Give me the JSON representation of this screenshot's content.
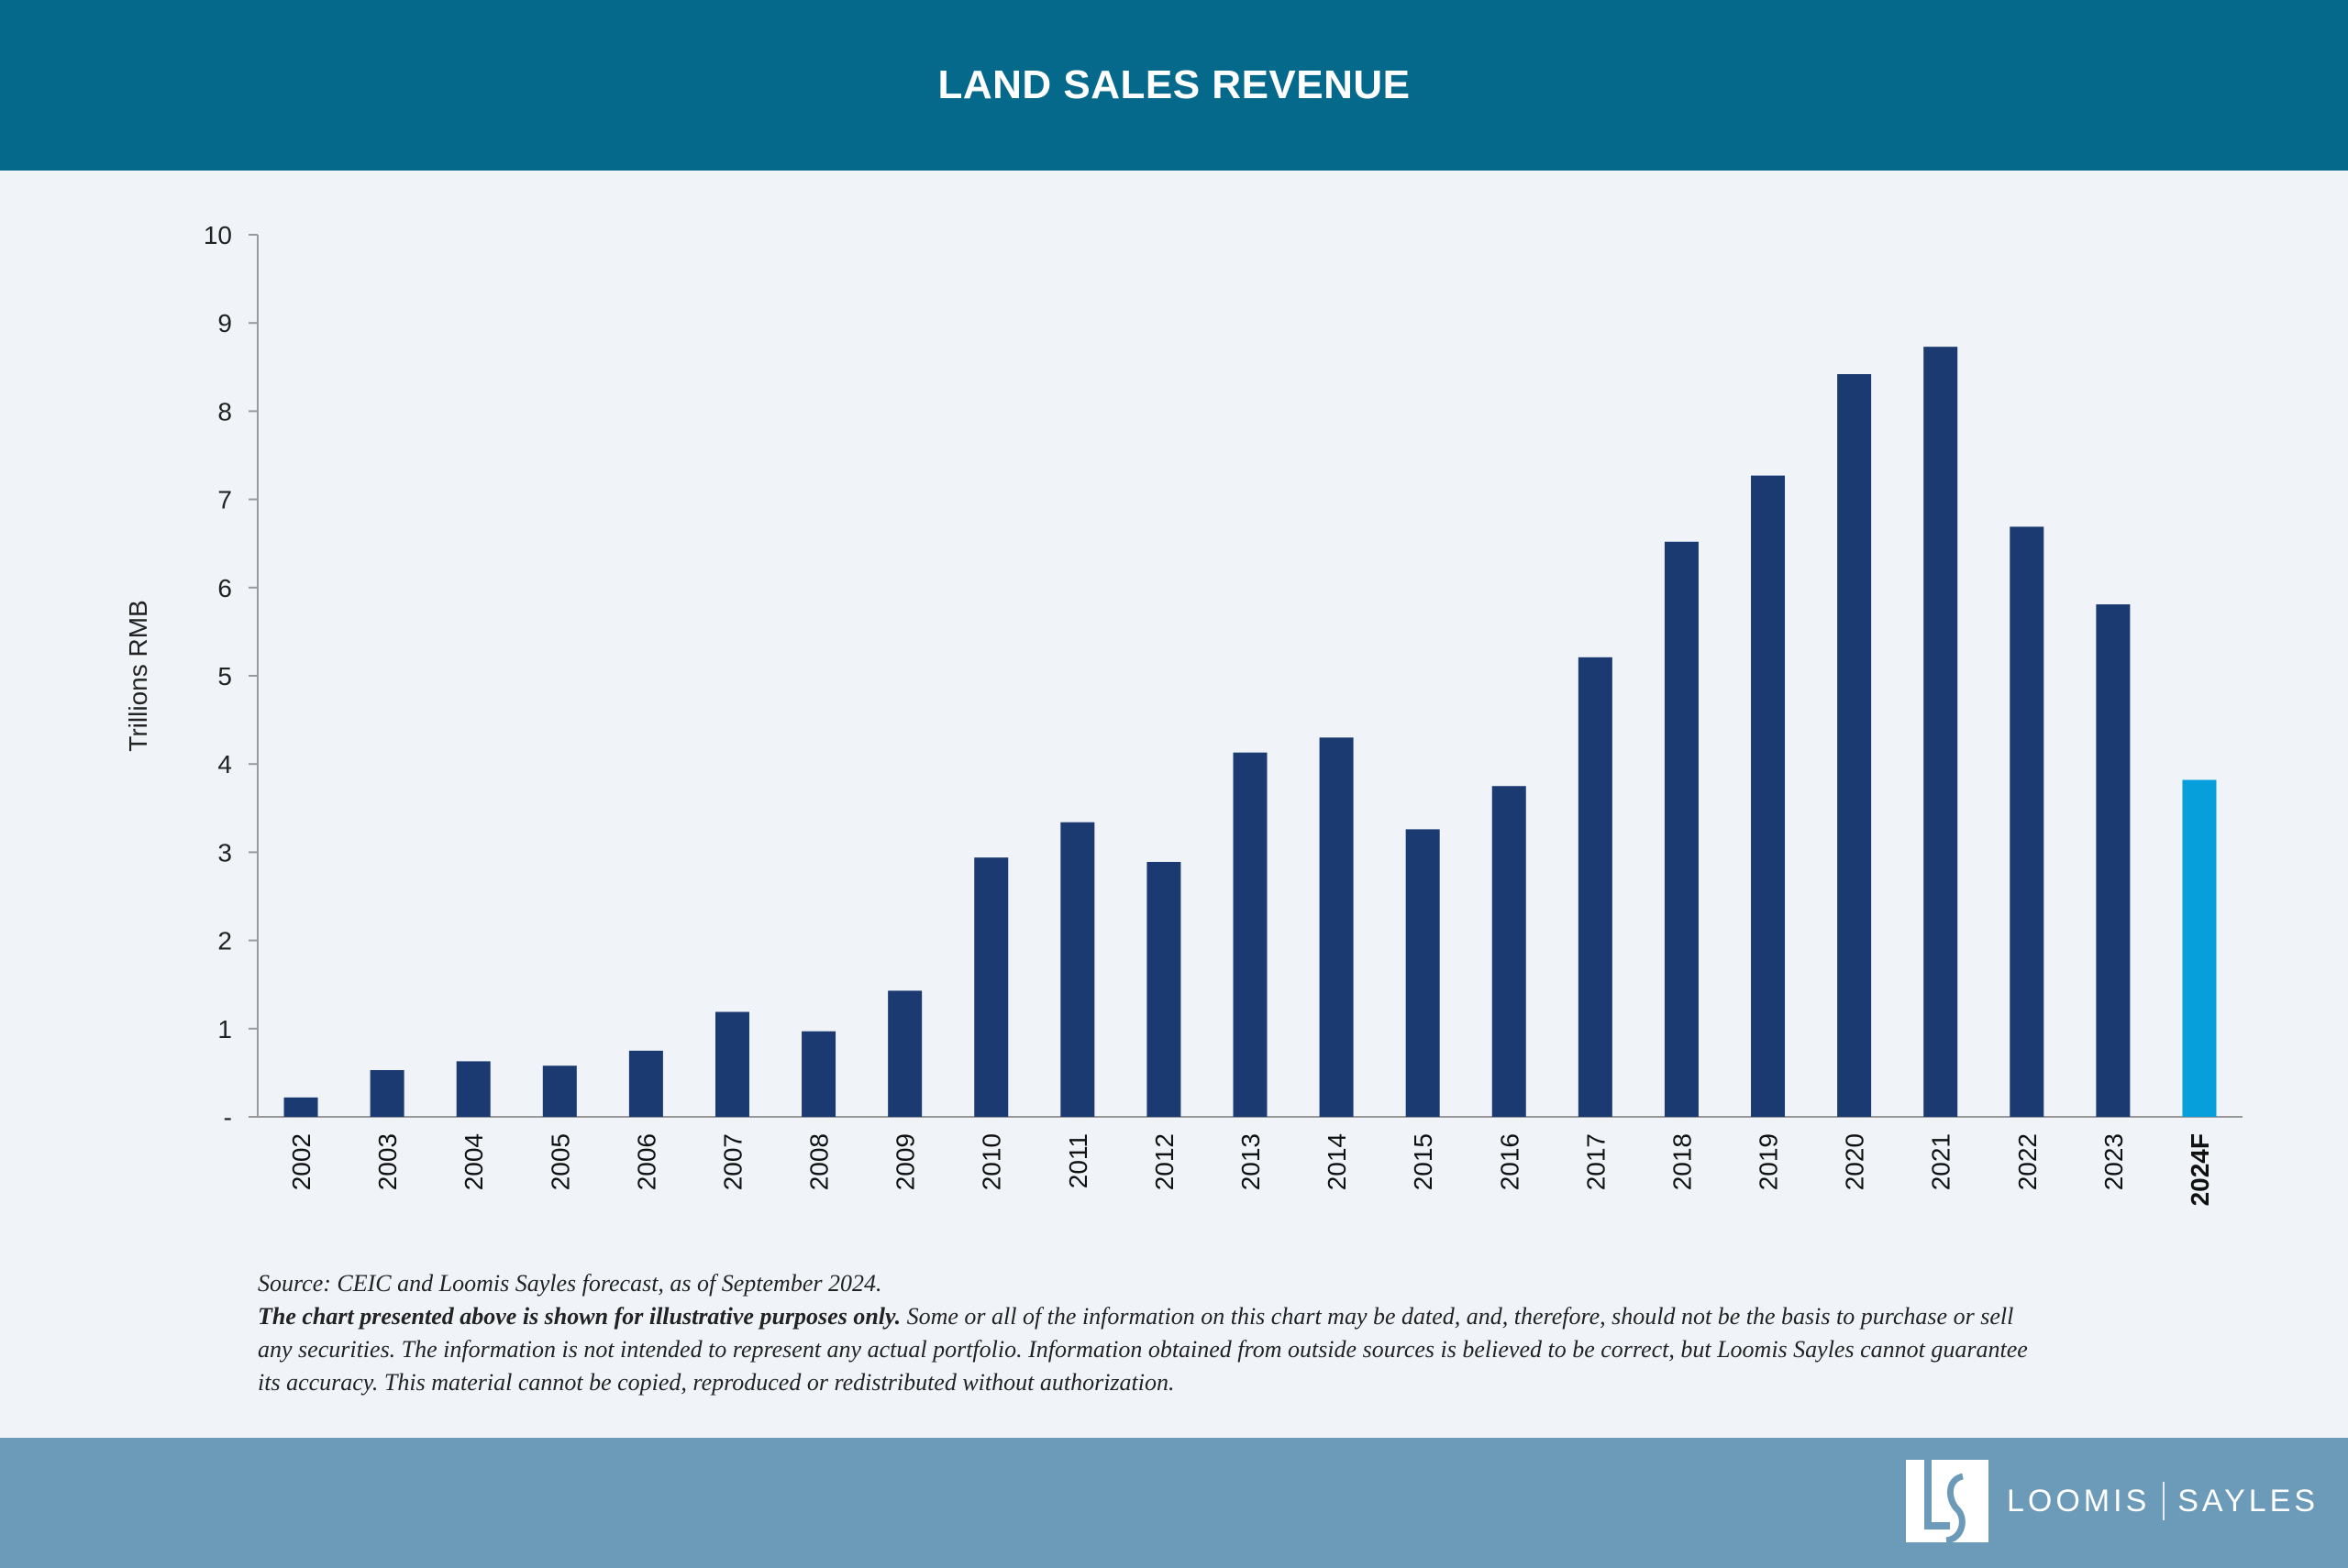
{
  "header": {
    "title": "LAND SALES REVENUE"
  },
  "chart_data": {
    "type": "bar",
    "title": "LAND SALES REVENUE",
    "xlabel": "",
    "ylabel": "Trillions RMB",
    "ylim": [
      0,
      10
    ],
    "yticks": [
      "-",
      "1",
      "2",
      "3",
      "4",
      "5",
      "6",
      "7",
      "8",
      "9",
      "10"
    ],
    "grid": false,
    "categories": [
      "2002",
      "2003",
      "2004",
      "2005",
      "2006",
      "2007",
      "2008",
      "2009",
      "2010",
      "2011",
      "2012",
      "2013",
      "2014",
      "2015",
      "2016",
      "2017",
      "2018",
      "2019",
      "2020",
      "2021",
      "2022",
      "2023",
      "2024F"
    ],
    "values": [
      0.22,
      0.53,
      0.63,
      0.58,
      0.75,
      1.19,
      0.97,
      1.43,
      2.94,
      3.34,
      2.89,
      4.13,
      4.3,
      3.26,
      3.75,
      5.21,
      6.52,
      7.27,
      8.42,
      8.73,
      6.69,
      5.81,
      3.82
    ],
    "colors": {
      "actual": "#1b3a72",
      "forecast": "#069fdb"
    },
    "forecast_categories": [
      "2024F"
    ]
  },
  "notes": {
    "source": "Source: CEIC and Loomis Sayles forecast, as of September 2024.",
    "disclaimer_bold": "The chart presented above is shown for illustrative purposes only.",
    "disclaimer": " Some or all of the information on this chart may be dated, and, therefore, should not be the basis to purchase or sell any securities. The information is not intended to represent any actual portfolio. Information obtained from outside sources is believed to be correct, but Loomis Sayles cannot guarantee its accuracy. This material cannot be copied, reproduced or redistributed without authorization."
  },
  "footer": {
    "logo_left": "LOOMIS",
    "logo_right": "SAYLES",
    "logo_mark": "LS"
  }
}
